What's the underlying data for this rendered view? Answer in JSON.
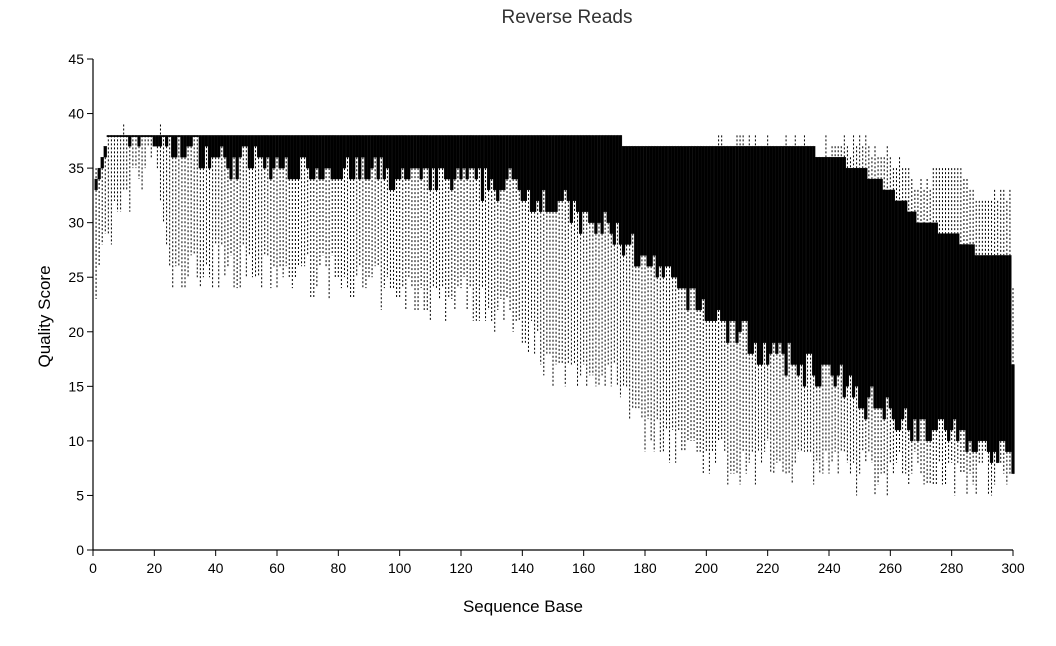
{
  "chart_data": {
    "type": "box",
    "title": "Reverse Reads",
    "xlabel": "Sequence Base",
    "ylabel": "Quality Score",
    "xlim": [
      0,
      300
    ],
    "ylim": [
      0,
      45
    ],
    "xticks": [
      0,
      20,
      40,
      60,
      80,
      100,
      120,
      140,
      160,
      180,
      200,
      220,
      240,
      260,
      280,
      300
    ],
    "yticks": [
      0,
      5,
      10,
      15,
      20,
      25,
      30,
      35,
      40,
      45
    ],
    "grid": false,
    "box_color": "#000000",
    "whisker_style": "dashed",
    "profile": {
      "base": [
        1,
        5,
        10,
        20,
        25,
        30,
        40,
        60,
        80,
        100,
        120,
        140,
        150,
        160,
        170,
        175,
        180,
        190,
        200,
        210,
        220,
        230,
        240,
        250,
        260,
        270,
        280,
        290,
        299,
        300
      ],
      "upper_whisker": [
        34,
        34,
        38,
        38,
        38,
        37,
        37,
        36,
        36,
        35,
        35,
        34,
        33,
        33,
        33,
        31,
        28,
        27,
        37,
        37,
        37,
        37,
        37,
        37,
        36,
        34,
        35,
        32,
        33,
        24
      ],
      "q3": [
        34,
        38,
        38,
        38,
        38,
        38,
        38,
        38,
        38,
        38,
        38,
        38,
        38,
        38,
        38,
        37,
        37,
        37,
        37,
        37,
        37,
        37,
        36,
        35,
        33,
        30,
        29,
        27,
        27,
        17
      ],
      "median": [
        34,
        38,
        38,
        38,
        38,
        38,
        38,
        38,
        38,
        38,
        38,
        38,
        38,
        38,
        38,
        37,
        37,
        37,
        37,
        37,
        37,
        36,
        33,
        31,
        30,
        29,
        27,
        27,
        27,
        17
      ],
      "q1": [
        34,
        37,
        38,
        38,
        37,
        37,
        36,
        35,
        35,
        34,
        34,
        33,
        32,
        30,
        29,
        28,
        26,
        24,
        22,
        20,
        18,
        17,
        16,
        14,
        13,
        11,
        11,
        9,
        9,
        7
      ],
      "lower_whisker": [
        24,
        30,
        31,
        37,
        25,
        25,
        26,
        25,
        25,
        23,
        23,
        21,
        16,
        16,
        16,
        14,
        11,
        10,
        9,
        8,
        8,
        8,
        8,
        7,
        7,
        7,
        7,
        7,
        7,
        7
      ]
    }
  }
}
